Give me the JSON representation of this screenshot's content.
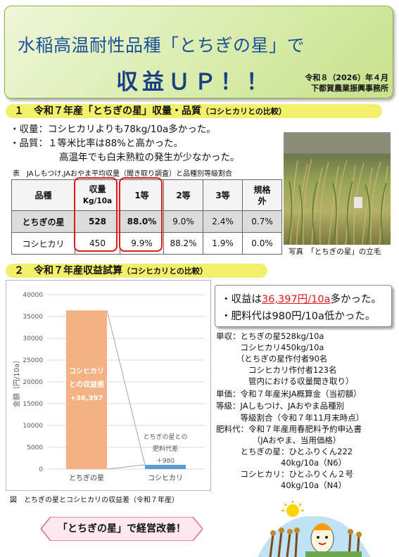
{
  "header": {
    "title_line1": "水稲高温耐性品種「とちぎの星」で",
    "title_line2": "収益ＵＰ！！",
    "date": "令和８（2026）年４月",
    "office": "下都賀農業振興事務所"
  },
  "section1": {
    "heading": "１　令和７年産「とちぎの星」収量・品質",
    "heading_sub": "（コシヒカリとの比較）",
    "bullet1": "・収量：コシヒカリよりも78kg/10a多かった。",
    "bullet2": "・品質：１等米比率は88%と高かった。",
    "bullet3": "高温年でも白未熟粒の発生が少なかった。",
    "table_caption": "表　JAしもつけ,JAおやま平均収量（聞き取り調査）と品種別等級割合",
    "table": {
      "headers": [
        "品種",
        "収量",
        "Kg/10a",
        "1等",
        "2等",
        "3等",
        "規格",
        "外"
      ],
      "rows": [
        [
          "とちぎの星",
          "528",
          "88.0%",
          "9.0%",
          "2.4%",
          "0.7%"
        ],
        [
          "コシヒカリ",
          "450",
          "9.9%",
          "88.2%",
          "1.9%",
          "0.0%"
        ]
      ]
    },
    "photo_caption": "写真　「とちぎの星」の立毛"
  },
  "section2": {
    "heading": "２　令和７年産収益試算",
    "heading_sub": "（コシヒカリとの比較）",
    "result1_pre": "・収益は",
    "result1_val": "36,397円/10a",
    "result1_post": "多かった。",
    "result2": "・肥料代は980円/10a低かった。",
    "details": [
      "単収：とちぎの星528kg/10a",
      "　　　コシヒカリ450kg/10a",
      "　　　（とちぎの星作付者90名",
      "　　　　コシヒカリ作付者123名",
      "　　　　管内における収量聞き取り）",
      "単価：令和７年産米JA概算金（当初額）",
      "等級：JAしもつけ、JAおやま品種別",
      "　　　等級割合（令和７年11月末時点）",
      "肥料代：令和７年産用春肥料予約申込書",
      "　　　　　（JAおやま、当用価格）",
      "　　　とちぎの星：ひとふりくん222",
      "　　　　　　　　40kg/10a（N6）",
      "　　　コシヒカリ：ひとふりくん２号",
      "　　　　　　　　40kg/10a（N4）"
    ],
    "figure_caption": "図　とちぎの星とコシヒカリの収益差（令和７年産）"
  },
  "chart_data": {
    "type": "bar",
    "categories": [
      "とちぎの星",
      "コシヒカリ"
    ],
    "values": [
      36397,
      980
    ],
    "bar_colors": [
      "#f4b183",
      "#5b9bd5"
    ],
    "ylabel": "金額（円/10a）",
    "ylim": [
      0,
      40000
    ],
    "yticks": [
      "0",
      "5000",
      "10000",
      "15000",
      "20000",
      "25000",
      "30000",
      "35000",
      "40000"
    ],
    "annotations": [
      {
        "lines": [
          "コシヒカリ",
          "との収益差",
          "+36,397"
        ]
      },
      {
        "lines": [
          "とちぎの星との",
          "肥料代差",
          "＋980"
        ]
      }
    ],
    "grid": true
  },
  "footer": {
    "banner": "「とちぎの星」で経営改善！"
  }
}
